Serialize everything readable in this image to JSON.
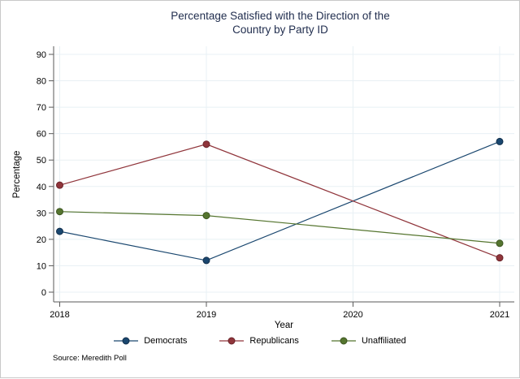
{
  "title": {
    "line1": "Percentage Satisfied with the Direction of the",
    "line2": "Country by Party ID"
  },
  "chart_data": {
    "type": "line",
    "title": "Percentage Satisfied with the Direction of the Country by Party ID",
    "x": [
      2018,
      2019,
      2021
    ],
    "series": [
      {
        "name": "Democrats",
        "color": "#1a476f",
        "marker_stroke": "#122f4c",
        "values": [
          23,
          12,
          57
        ]
      },
      {
        "name": "Republicans",
        "color": "#90353b",
        "marker_stroke": "#6b2329",
        "values": [
          40.5,
          56,
          13
        ]
      },
      {
        "name": "Unaffiliated",
        "color": "#55752f",
        "marker_stroke": "#3e5621",
        "values": [
          30.5,
          29,
          18.5
        ]
      }
    ],
    "xlabel": "Year",
    "ylabel": "Percentage",
    "ylim": [
      0,
      90
    ],
    "yticks": [
      0,
      10,
      20,
      30,
      40,
      50,
      60,
      70,
      80,
      90
    ],
    "xticks": [
      2018,
      2019,
      2020,
      2021
    ],
    "grid": true,
    "legend_position": "bottom"
  },
  "footer": {
    "source_note": "Source: Meredith Poll"
  }
}
